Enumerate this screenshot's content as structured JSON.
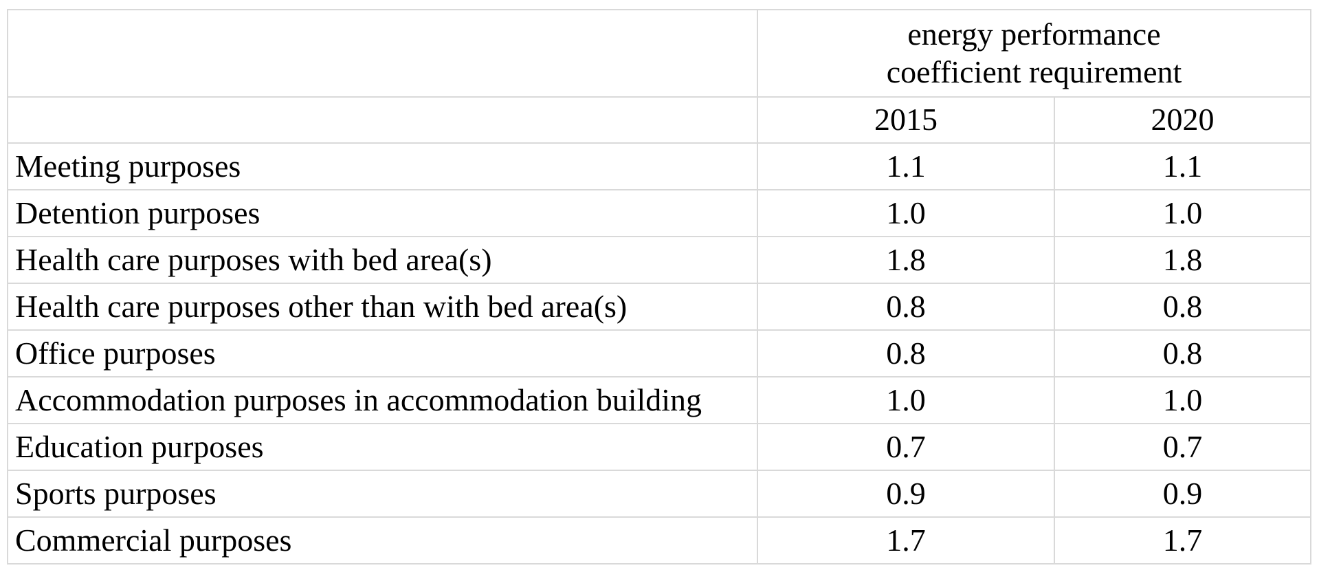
{
  "table": {
    "header": {
      "title_line1": "energy performance",
      "title_line2": "coefficient requirement",
      "years": [
        "2015",
        "2020"
      ]
    },
    "rows": [
      {
        "label": "Meeting purposes",
        "y2015": "1.1",
        "y2020": "1.1"
      },
      {
        "label": "Detention purposes",
        "y2015": "1.0",
        "y2020": "1.0"
      },
      {
        "label": "Health care purposes with bed area(s)",
        "y2015": "1.8",
        "y2020": "1.8"
      },
      {
        "label": "Health care purposes other than with bed area(s)",
        "y2015": "0.8",
        "y2020": "0.8"
      },
      {
        "label": "Office purposes",
        "y2015": "0.8",
        "y2020": "0.8"
      },
      {
        "label": "Accommodation purposes in accommodation building",
        "y2015": "1.0",
        "y2020": "1.0"
      },
      {
        "label": "Education purposes",
        "y2015": "0.7",
        "y2020": "0.7"
      },
      {
        "label": "Sports purposes",
        "y2015": "0.9",
        "y2020": "0.9"
      },
      {
        "label": "Commercial purposes",
        "y2015": "1.7",
        "y2020": "1.7"
      }
    ]
  },
  "colors": {
    "grid_border": "#d9d9d9",
    "text": "#000000",
    "background": "#ffffff"
  }
}
